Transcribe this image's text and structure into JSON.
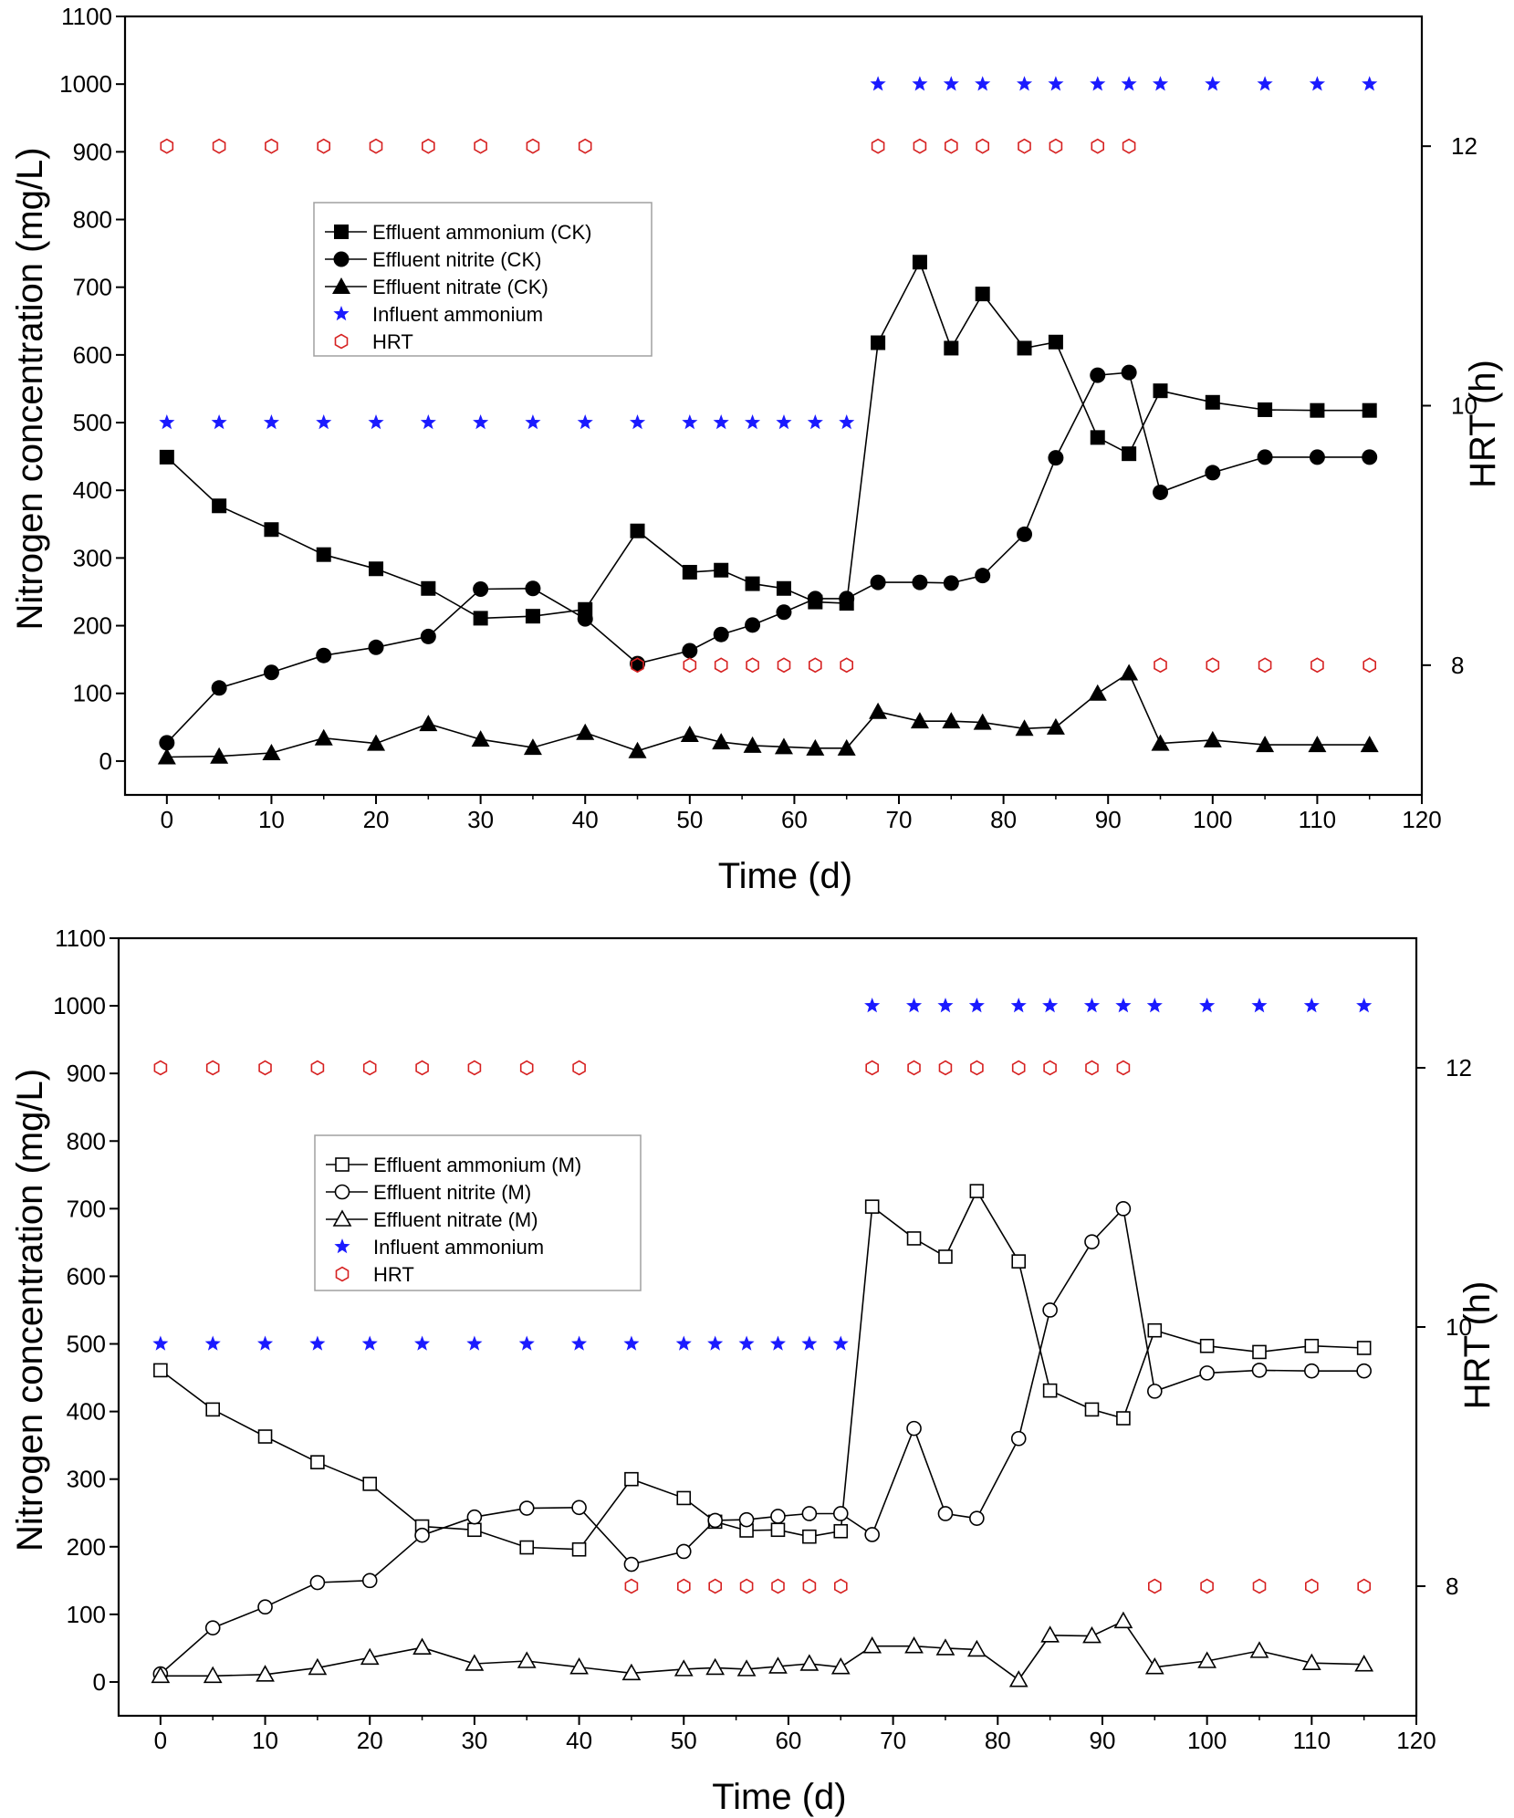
{
  "chart_data": [
    {
      "type": "line",
      "xlabel": "Time (d)",
      "ylabel": "Nitrogen concentration (mg/L)",
      "y2label": "HRT (h)",
      "xlim": [
        -4,
        120
      ],
      "ylim": [
        -50,
        1100
      ],
      "y2lim": [
        7,
        13
      ],
      "xticks": [
        0,
        10,
        20,
        30,
        40,
        50,
        60,
        70,
        80,
        90,
        100,
        110,
        120
      ],
      "yticks": [
        0,
        100,
        200,
        300,
        400,
        500,
        600,
        700,
        800,
        900,
        1000,
        1100
      ],
      "y2ticks": [
        8,
        10,
        12
      ],
      "legend_position": "upper-left",
      "grid": false,
      "series": [
        {
          "name": "Effluent ammonium (CK)",
          "marker": "filled-square",
          "axis": "left",
          "line": true,
          "x": [
            0,
            5,
            10,
            15,
            20,
            25,
            30,
            35,
            40,
            45,
            50,
            53,
            56,
            59,
            62,
            65,
            68,
            72,
            75,
            78,
            82,
            85,
            89,
            92,
            95,
            100,
            105,
            110,
            115
          ],
          "y": [
            449,
            377,
            342,
            305,
            284,
            255,
            211,
            214,
            224,
            340,
            279,
            282,
            262,
            255,
            235,
            233,
            618,
            737,
            610,
            690,
            610,
            619,
            478,
            454,
            547,
            530,
            519,
            518,
            518
          ]
        },
        {
          "name": "Effluent nitrite (CK)",
          "marker": "filled-circle",
          "axis": "left",
          "line": true,
          "x": [
            0,
            5,
            10,
            15,
            20,
            25,
            30,
            35,
            40,
            45,
            50,
            53,
            56,
            59,
            62,
            65,
            68,
            72,
            75,
            78,
            82,
            85,
            89,
            92,
            95,
            100,
            105,
            110,
            115
          ],
          "y": [
            27,
            108,
            131,
            156,
            168,
            184,
            254,
            255,
            210,
            144,
            163,
            187,
            201,
            220,
            240,
            240,
            264,
            264,
            263,
            274,
            335,
            448,
            570,
            574,
            397,
            426,
            449,
            449,
            449
          ]
        },
        {
          "name": "Effluent nitrate (CK)",
          "marker": "filled-triangle",
          "axis": "left",
          "line": true,
          "x": [
            0,
            5,
            10,
            15,
            20,
            25,
            30,
            35,
            40,
            45,
            50,
            53,
            56,
            59,
            62,
            65,
            68,
            72,
            75,
            78,
            82,
            85,
            89,
            92,
            95,
            100,
            105,
            110,
            115
          ],
          "y": [
            6,
            7,
            12,
            34,
            26,
            55,
            32,
            20,
            42,
            15,
            39,
            28,
            23,
            21,
            19,
            19,
            73,
            59,
            59,
            57,
            48,
            50,
            100,
            130,
            26,
            31,
            24,
            24,
            24
          ]
        },
        {
          "name": "Influent ammonium",
          "marker": "star",
          "axis": "left",
          "line": false,
          "x": [
            0,
            5,
            10,
            15,
            20,
            25,
            30,
            35,
            40,
            45,
            50,
            53,
            56,
            59,
            62,
            65,
            68,
            72,
            75,
            78,
            82,
            85,
            89,
            92,
            95,
            100,
            105,
            110,
            115
          ],
          "y": [
            500,
            500,
            500,
            500,
            500,
            500,
            500,
            500,
            500,
            500,
            500,
            500,
            500,
            500,
            500,
            500,
            1000,
            1000,
            1000,
            1000,
            1000,
            1000,
            1000,
            1000,
            1000,
            1000,
            1000,
            1000,
            1000
          ]
        },
        {
          "name": "HRT",
          "marker": "open-hexagon",
          "axis": "right",
          "line": false,
          "x": [
            0,
            5,
            10,
            15,
            20,
            25,
            30,
            35,
            40,
            45,
            50,
            53,
            56,
            59,
            62,
            65,
            68,
            72,
            75,
            78,
            82,
            85,
            89,
            92,
            95,
            100,
            105,
            110,
            115
          ],
          "y": [
            12,
            12,
            12,
            12,
            12,
            12,
            12,
            12,
            12,
            8,
            8,
            8,
            8,
            8,
            8,
            8,
            12,
            12,
            12,
            12,
            12,
            12,
            12,
            12,
            8,
            8,
            8,
            8,
            8
          ]
        }
      ]
    },
    {
      "type": "line",
      "xlabel": "Time (d)",
      "ylabel": "Nitrogen concentration (mg/L)",
      "y2label": "HRT (h)",
      "xlim": [
        -4,
        120
      ],
      "ylim": [
        -50,
        1100
      ],
      "y2lim": [
        7,
        13
      ],
      "xticks": [
        0,
        10,
        20,
        30,
        40,
        50,
        60,
        70,
        80,
        90,
        100,
        110,
        120
      ],
      "yticks": [
        0,
        100,
        200,
        300,
        400,
        500,
        600,
        700,
        800,
        900,
        1000,
        1100
      ],
      "y2ticks": [
        8,
        10,
        12
      ],
      "legend_position": "upper-left",
      "grid": false,
      "series": [
        {
          "name": "Effluent ammonium (M)",
          "marker": "open-square",
          "axis": "left",
          "line": true,
          "x": [
            0,
            5,
            10,
            15,
            20,
            25,
            30,
            35,
            40,
            45,
            50,
            53,
            56,
            59,
            62,
            65,
            68,
            72,
            75,
            78,
            82,
            85,
            89,
            92,
            95,
            100,
            105,
            110,
            115
          ],
          "y": [
            461,
            403,
            363,
            325,
            293,
            230,
            225,
            199,
            196,
            300,
            272,
            237,
            224,
            225,
            215,
            223,
            703,
            656,
            629,
            726,
            622,
            431,
            403,
            390,
            520,
            497,
            488,
            497,
            494
          ]
        },
        {
          "name": "Effluent nitrite (M)",
          "marker": "open-circle",
          "axis": "left",
          "line": true,
          "x": [
            0,
            5,
            10,
            15,
            20,
            25,
            30,
            35,
            40,
            45,
            50,
            53,
            56,
            59,
            62,
            65,
            68,
            72,
            75,
            78,
            82,
            85,
            89,
            92,
            95,
            100,
            105,
            110,
            115
          ],
          "y": [
            12,
            80,
            111,
            147,
            150,
            217,
            244,
            257,
            258,
            174,
            193,
            239,
            240,
            245,
            249,
            249,
            218,
            375,
            249,
            242,
            360,
            550,
            651,
            700,
            430,
            457,
            461,
            460,
            460
          ]
        },
        {
          "name": "Effluent nitrate (M)",
          "marker": "open-triangle",
          "axis": "left",
          "line": true,
          "x": [
            0,
            5,
            10,
            15,
            20,
            25,
            30,
            35,
            40,
            45,
            50,
            53,
            56,
            59,
            62,
            65,
            68,
            72,
            75,
            78,
            82,
            85,
            89,
            92,
            95,
            100,
            105,
            110,
            115
          ],
          "y": [
            9,
            9,
            11,
            21,
            36,
            51,
            27,
            31,
            22,
            13,
            19,
            21,
            19,
            23,
            27,
            22,
            53,
            53,
            50,
            48,
            3,
            69,
            68,
            90,
            22,
            31,
            46,
            28,
            26
          ]
        },
        {
          "name": "Influent ammonium",
          "marker": "star",
          "axis": "left",
          "line": false,
          "x": [
            0,
            5,
            10,
            15,
            20,
            25,
            30,
            35,
            40,
            45,
            50,
            53,
            56,
            59,
            62,
            65,
            68,
            72,
            75,
            78,
            82,
            85,
            89,
            92,
            95,
            100,
            105,
            110,
            115
          ],
          "y": [
            500,
            500,
            500,
            500,
            500,
            500,
            500,
            500,
            500,
            500,
            500,
            500,
            500,
            500,
            500,
            500,
            1000,
            1000,
            1000,
            1000,
            1000,
            1000,
            1000,
            1000,
            1000,
            1000,
            1000,
            1000,
            1000
          ]
        },
        {
          "name": "HRT",
          "marker": "open-hexagon",
          "axis": "right",
          "line": false,
          "x": [
            0,
            5,
            10,
            15,
            20,
            25,
            30,
            35,
            40,
            45,
            50,
            53,
            56,
            59,
            62,
            65,
            68,
            72,
            75,
            78,
            82,
            85,
            89,
            92,
            95,
            100,
            105,
            110,
            115
          ],
          "y": [
            12,
            12,
            12,
            12,
            12,
            12,
            12,
            12,
            12,
            8,
            8,
            8,
            8,
            8,
            8,
            8,
            12,
            12,
            12,
            12,
            12,
            12,
            12,
            12,
            8,
            8,
            8,
            8,
            8
          ]
        }
      ]
    }
  ],
  "colors": {
    "axis": "#000000",
    "series_line": "#000000",
    "influent_star": "#1a1aff",
    "hrt_hexagon": "#d62020",
    "legend_border": "#a0a0a0",
    "background": "#ffffff"
  }
}
